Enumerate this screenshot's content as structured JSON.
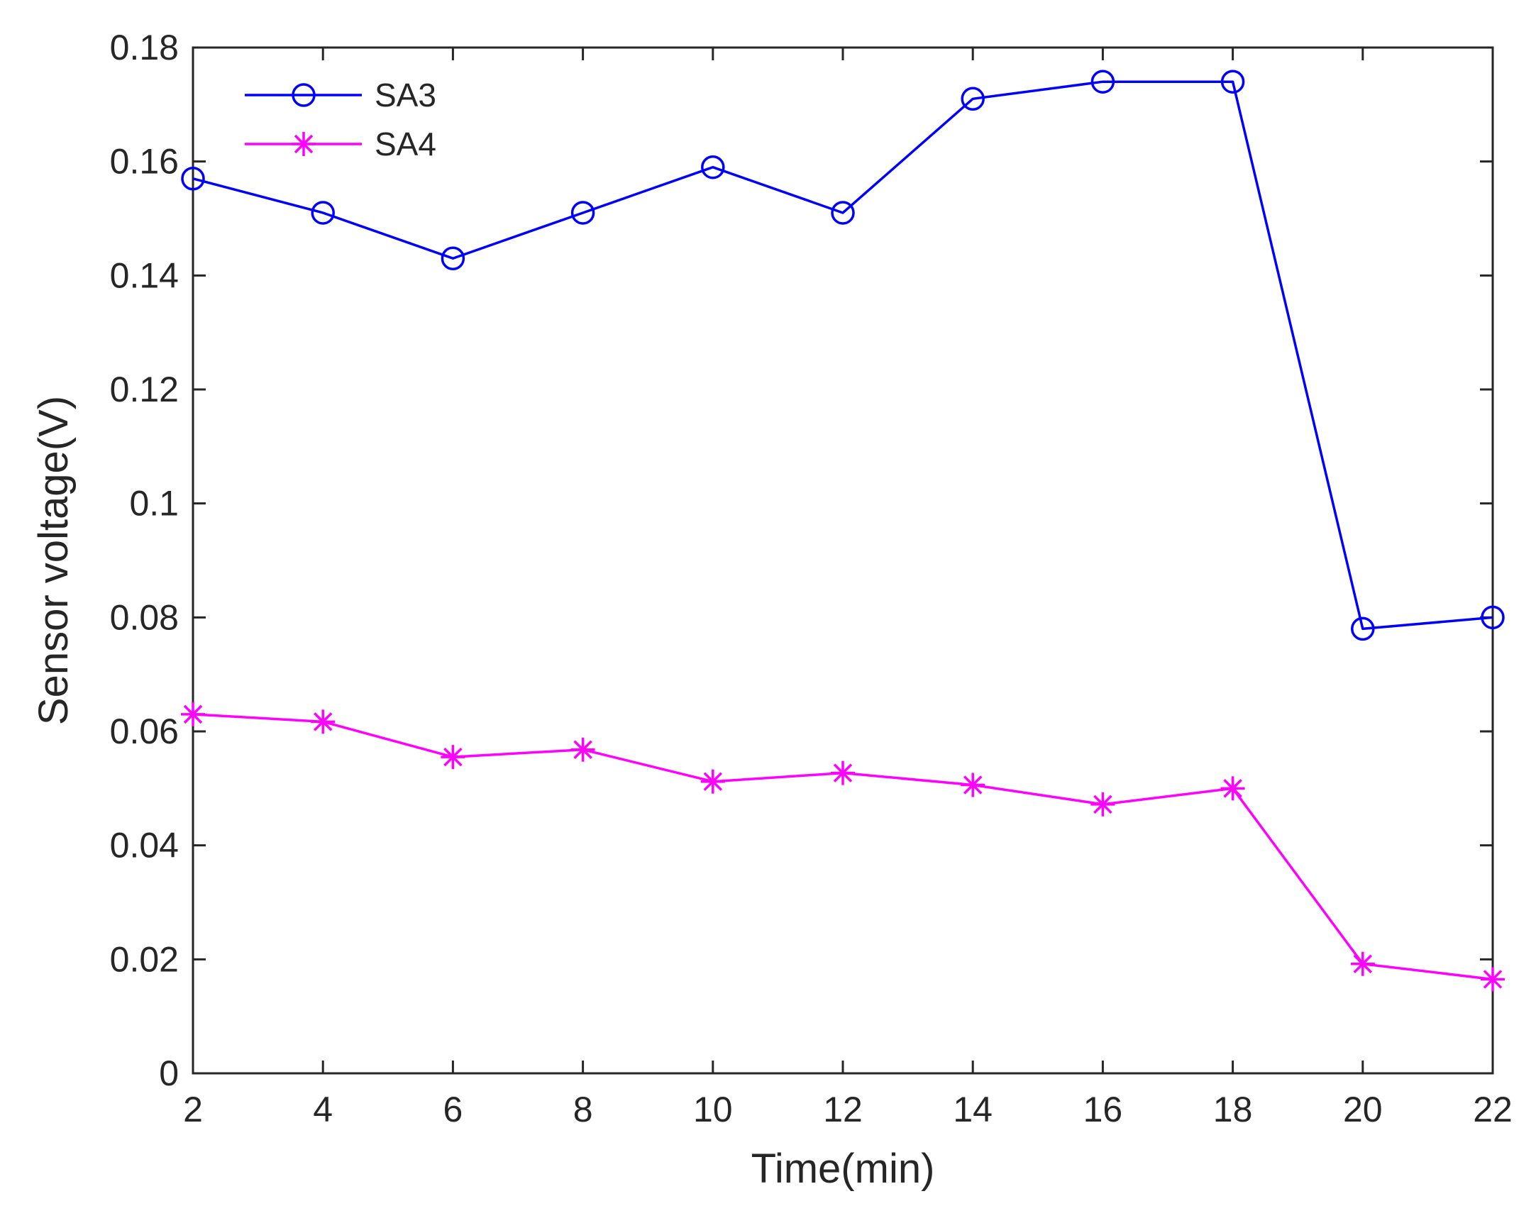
{
  "chart_data": {
    "type": "line",
    "title": "",
    "xlabel": "Time(min)",
    "ylabel": "Sensor voltage(V)",
    "xlim": [
      2,
      22
    ],
    "ylim": [
      0,
      0.18
    ],
    "grid": false,
    "legend_position": "top-left",
    "x": [
      2,
      4,
      6,
      8,
      10,
      12,
      14,
      16,
      18,
      20,
      22
    ],
    "x_tick_labels": [
      "2",
      "4",
      "6",
      "8",
      "10",
      "12",
      "14",
      "16",
      "18",
      "20",
      "22"
    ],
    "y_ticks": [
      0,
      0.02,
      0.04,
      0.06,
      0.08,
      0.1,
      0.12,
      0.14,
      0.16,
      0.18
    ],
    "y_tick_labels": [
      "0",
      "0.02",
      "0.04",
      "0.06",
      "0.08",
      "0.1",
      "0.12",
      "0.14",
      "0.16",
      "0.18"
    ],
    "series": [
      {
        "name": "SA3",
        "color": "#0000ff",
        "marker": "circle",
        "values": [
          0.157,
          0.151,
          0.143,
          0.151,
          0.159,
          0.151,
          0.171,
          0.174,
          0.174,
          0.078,
          0.08
        ]
      },
      {
        "name": "SA4",
        "color": "#ff00ff",
        "marker": "asterisk",
        "values": [
          0.063,
          0.0617,
          0.0555,
          0.0568,
          0.0512,
          0.0527,
          0.0506,
          0.0472,
          0.05,
          0.0192,
          0.0165
        ]
      }
    ]
  }
}
